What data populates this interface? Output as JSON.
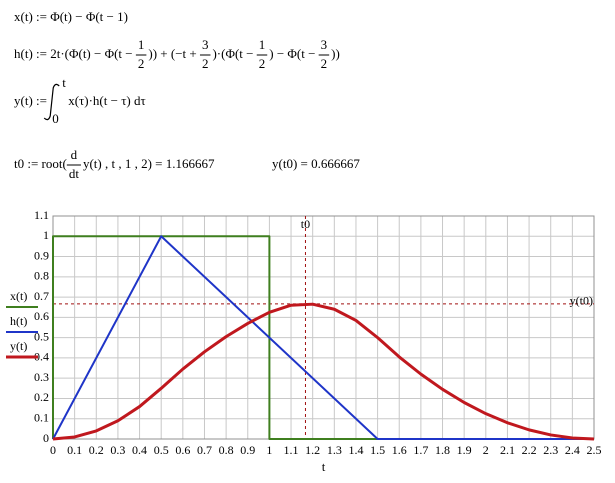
{
  "formulas": [
    [
      "x(t) := Φ(t) − Φ(t − 1)"
    ],
    [
      "h(t) := 2t·(Φ(t) − Φ(t − ",
      {
        "num": "1",
        "den": "2"
      },
      ")) + (−t + ",
      {
        "num": "3",
        "den": "2"
      },
      ")·(Φ(t − ",
      {
        "num": "1",
        "den": "2"
      },
      ") − Φ(t − ",
      {
        "num": "3",
        "den": "2"
      },
      "))"
    ],
    [
      "y(t) := ",
      {
        "upper": "t",
        "lower": "0"
      },
      "x(τ)·h(t − τ) dτ"
    ],
    [
      "t0 := root(",
      {
        "num": "d",
        "den": "dt"
      },
      "y(t) , t , 1 , 2) = 1.166667"
    ],
    [
      "y(t0) = 0.666667"
    ]
  ],
  "chart_data": {
    "type": "line",
    "xlabel": "t",
    "grid": true,
    "legend": "left",
    "xlim": [
      0,
      2.5
    ],
    "ylim": [
      0,
      1.1
    ],
    "xticks": [
      0,
      0.1,
      0.2,
      0.3,
      0.4,
      0.5,
      0.6,
      0.7,
      0.8,
      0.9,
      1,
      1.1,
      1.2,
      1.3,
      1.4,
      1.5,
      1.6,
      1.7,
      1.8,
      1.9,
      2,
      2.1,
      2.2,
      2.3,
      2.4,
      2.5
    ],
    "yticks": [
      0,
      0.1,
      0.2,
      0.3,
      0.4,
      0.5,
      0.6,
      0.7,
      0.8,
      0.9,
      1,
      1.1
    ],
    "series": [
      {
        "name": "x(t)",
        "color": "#3f7f1f",
        "width": 2,
        "x": [
          0,
          0,
          1,
          1,
          2.5
        ],
        "values": [
          0,
          1,
          1,
          0,
          0
        ]
      },
      {
        "name": "h(t)",
        "color": "#1f35c8",
        "width": 2,
        "x": [
          0,
          0.5,
          1.5,
          2.5
        ],
        "values": [
          0,
          1,
          0,
          0
        ]
      },
      {
        "name": "y(t)",
        "color": "#c0181e",
        "width": 3,
        "x": [
          0,
          0.1,
          0.2,
          0.3,
          0.4,
          0.5,
          0.6,
          0.7,
          0.8,
          0.9,
          1,
          1.1,
          1.2,
          1.3,
          1.4,
          1.5,
          1.6,
          1.7,
          1.8,
          1.9,
          2,
          2.1,
          2.2,
          2.3,
          2.4,
          2.5
        ],
        "values": [
          0,
          0.01,
          0.04,
          0.09,
          0.16,
          0.25,
          0.345,
          0.43,
          0.505,
          0.57,
          0.625,
          0.66,
          0.665,
          0.64,
          0.585,
          0.5,
          0.405,
          0.32,
          0.245,
          0.18,
          0.125,
          0.08,
          0.045,
          0.02,
          0.005,
          0
        ]
      }
    ],
    "markers": {
      "x": {
        "value": 1.166667,
        "label": "t0"
      },
      "y": {
        "value": 0.666667,
        "label": "y(t0)"
      }
    }
  }
}
